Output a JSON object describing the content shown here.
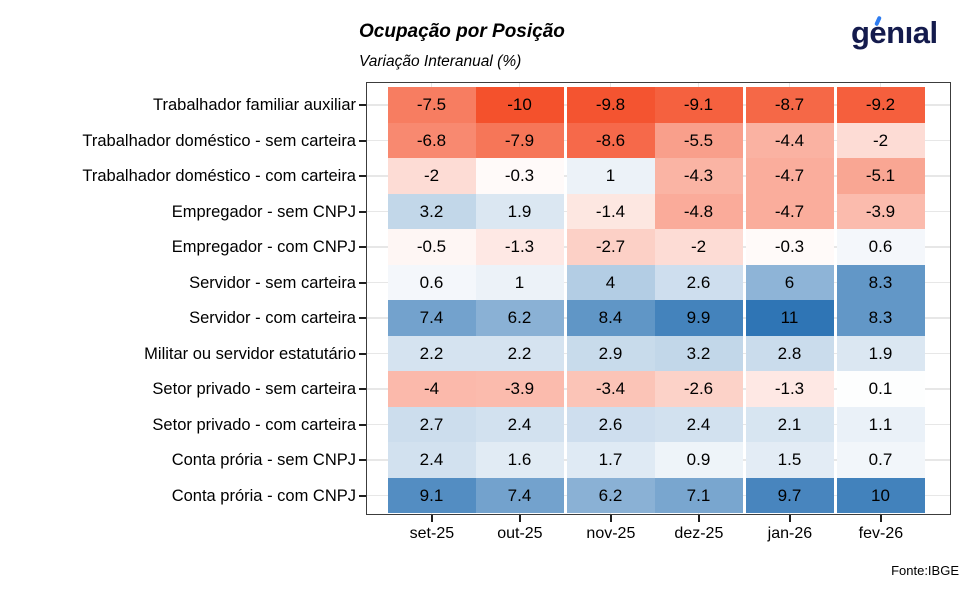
{
  "header": {
    "title": "Ocupação por Posição",
    "subtitle": "Variação Interanual (%)",
    "logo_text": "genıal",
    "logo_color": "#141B4D",
    "logo_accent_color": "#2E7CF0"
  },
  "footer": {
    "source": "Fonte:IBGE"
  },
  "chart_data": {
    "type": "heatmap",
    "title": "Ocupação por Posição",
    "subtitle": "Variação Interanual (%)",
    "x_labels": [
      "set-25",
      "out-25",
      "nov-25",
      "dez-25",
      "jan-26",
      "fev-26"
    ],
    "y_labels": [
      "Trabalhador familiar auxiliar",
      "Trabalhador doméstico - sem carteira",
      "Trabalhador doméstico - com carteira",
      "Empregador - sem CNPJ",
      "Empregador - com CNPJ",
      "Servidor - sem carteira",
      "Servidor - com carteira",
      "Militar ou servidor estatutário",
      "Setor privado - sem carteira",
      "Setor privado - com carteira",
      "Conta prória - sem CNPJ",
      "Conta prória - com CNPJ"
    ],
    "values": [
      [
        -7.5,
        -10,
        -9.8,
        -9.1,
        -8.7,
        -9.2
      ],
      [
        -6.8,
        -7.9,
        -8.6,
        -5.5,
        -4.4,
        -2
      ],
      [
        -2,
        -0.3,
        1,
        -4.3,
        -4.7,
        -5.1
      ],
      [
        3.2,
        1.9,
        -1.4,
        -4.8,
        -4.7,
        -3.9
      ],
      [
        -0.5,
        -1.3,
        -2.7,
        -2,
        -0.3,
        0.6
      ],
      [
        0.6,
        1,
        4,
        2.6,
        6,
        8.3
      ],
      [
        7.4,
        6.2,
        8.4,
        9.9,
        11,
        8.3
      ],
      [
        2.2,
        2.2,
        2.9,
        3.2,
        2.8,
        1.9
      ],
      [
        -4,
        -3.9,
        -3.4,
        -2.6,
        -1.3,
        0.1
      ],
      [
        2.7,
        2.4,
        2.6,
        2.4,
        2.1,
        1.1
      ],
      [
        2.4,
        1.6,
        1.7,
        0.9,
        1.5,
        0.7
      ],
      [
        9.1,
        7.4,
        6.2,
        7.1,
        9.7,
        10
      ]
    ],
    "value_range": [
      -10,
      11
    ],
    "colorscale": {
      "negative_color": "#F4512C",
      "negative_anchor": -10,
      "midpoint_color": "#FFFFFF",
      "positive_color": "#2F75B5",
      "positive_anchor": 11
    },
    "layout": {
      "grid": true,
      "ticks": [
        "left",
        "bottom"
      ],
      "column_day_offsets": [
        0,
        30,
        61,
        91,
        122,
        153
      ],
      "tile_width_days": 30,
      "gaps_after_columns": [
        "out-25",
        "dez-25",
        "jan-26"
      ]
    }
  }
}
